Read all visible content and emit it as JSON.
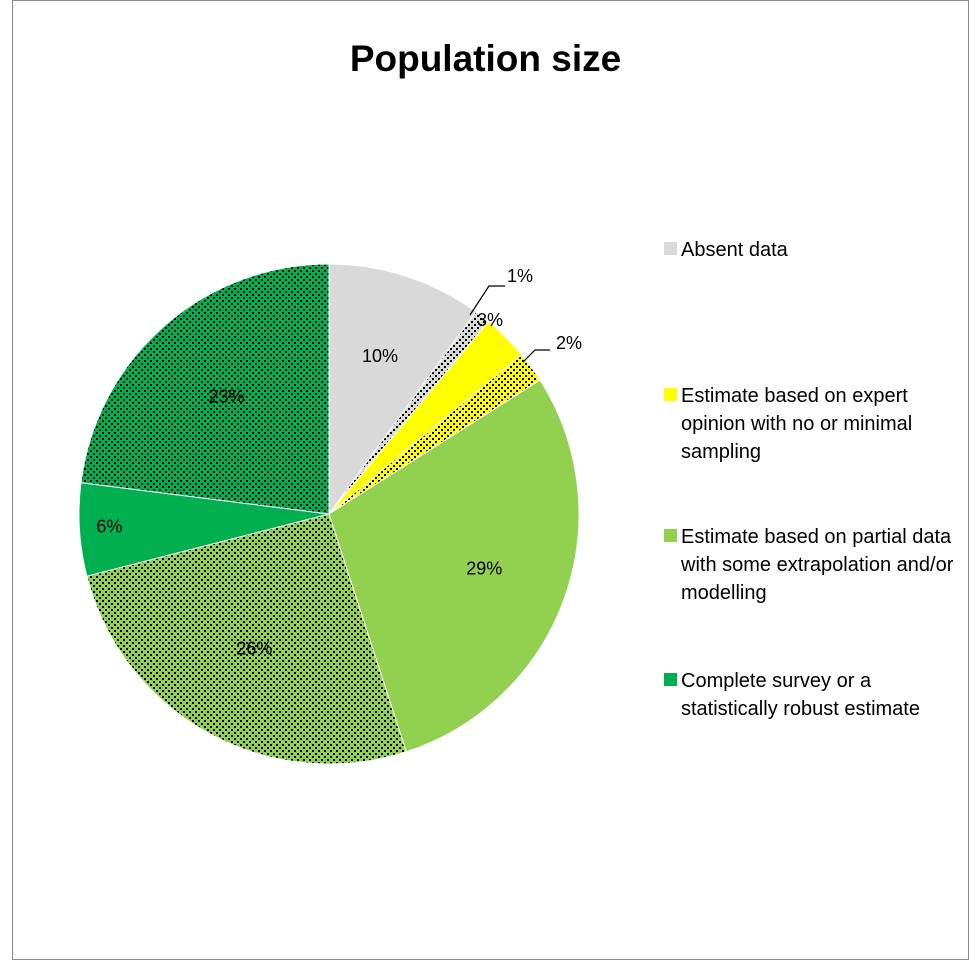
{
  "chart_data": {
    "type": "pie",
    "title": "Population size",
    "slices": [
      {
        "label": "10%",
        "value": 10,
        "category": "Absent data",
        "color": "#d9d9d9",
        "pattern": "none"
      },
      {
        "label": "1%",
        "value": 1,
        "category": "Absent data",
        "color": "#d9d9d9",
        "pattern": "dots"
      },
      {
        "label": "3%",
        "value": 3,
        "category": "Estimate based on expert opinion with no or minimal sampling",
        "color": "#ffff00",
        "pattern": "none"
      },
      {
        "label": "2%",
        "value": 2,
        "category": "Estimate based on expert opinion with no or minimal sampling",
        "color": "#ffff00",
        "pattern": "dots"
      },
      {
        "label": "29%",
        "value": 29,
        "category": "Estimate based on partial data with some extrapolation and/or modelling",
        "color": "#92d050",
        "pattern": "none"
      },
      {
        "label": "26%",
        "value": 26,
        "category": "Estimate based on partial data with some extrapolation and/or modelling",
        "color": "#92d050",
        "pattern": "dots"
      },
      {
        "label": "6%",
        "value": 6,
        "category": "Complete survey or a statistically robust estimate",
        "color": "#00b050",
        "pattern": "none"
      },
      {
        "label": "23%",
        "value": 23,
        "category": "Complete survey or a statistically robust estimate",
        "color": "#00b050",
        "pattern": "dots"
      }
    ],
    "legend": [
      {
        "label": "Absent data",
        "color": "#d9d9d9"
      },
      {
        "label": "Estimate based on expert opinion with no or minimal sampling",
        "color": "#ffff00"
      },
      {
        "label": "Estimate based on partial data with some extrapolation and/or modelling",
        "color": "#92d050"
      },
      {
        "label": "Complete survey or a statistically robust estimate",
        "color": "#00b050"
      }
    ],
    "legend_position": "right"
  }
}
